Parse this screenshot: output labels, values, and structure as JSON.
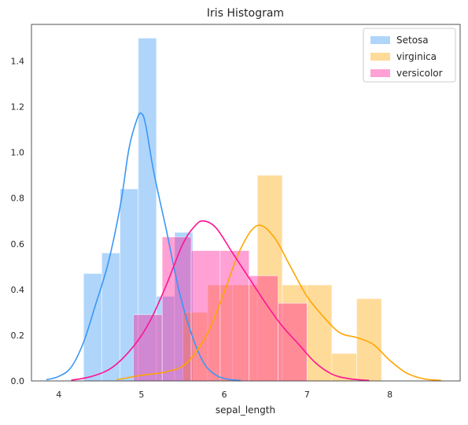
{
  "chart_data": {
    "type": "histogram",
    "title": "Iris Histogram",
    "xlabel": "sepal_length",
    "ylabel": "",
    "xlim": [
      3.67,
      8.85
    ],
    "ylim": [
      0,
      1.56
    ],
    "xticks": [
      4,
      5,
      6,
      7,
      8
    ],
    "yticks": [
      0.0,
      0.2,
      0.4,
      0.6,
      0.8,
      1.0,
      1.2,
      1.4
    ],
    "ytick_labels": [
      "0.0",
      "0.2",
      "0.4",
      "0.6",
      "0.8",
      "1.0",
      "1.2",
      "1.4"
    ],
    "grid": false,
    "legend_position": "top-right",
    "series": [
      {
        "name": "Setosa",
        "color": "#3a97f5",
        "bin_edges": [
          4.3,
          4.52,
          4.74,
          4.96,
          5.18,
          5.4,
          5.62
        ],
        "values": [
          0.47,
          0.56,
          0.84,
          1.5,
          0.37,
          0.65
        ],
        "kde": {
          "x": [
            3.85,
            4.0,
            4.15,
            4.3,
            4.45,
            4.6,
            4.75,
            4.85,
            4.95,
            5.0,
            5.05,
            5.15,
            5.3,
            5.45,
            5.6,
            5.75,
            5.9,
            6.05,
            6.2
          ],
          "y": [
            0.005,
            0.02,
            0.06,
            0.17,
            0.34,
            0.52,
            0.78,
            1.02,
            1.15,
            1.17,
            1.12,
            0.91,
            0.66,
            0.4,
            0.21,
            0.08,
            0.025,
            0.007,
            0.002
          ]
        }
      },
      {
        "name": "virginica",
        "color": "#ffa500",
        "bin_edges": [
          4.9,
          5.2,
          5.5,
          5.8,
          6.1,
          6.4,
          6.7,
          7.0,
          7.3,
          7.6,
          7.9
        ],
        "values": [
          0.0,
          0.0,
          0.3,
          0.42,
          0.42,
          0.9,
          0.42,
          0.42,
          0.12,
          0.36
        ],
        "kde": {
          "x": [
            4.7,
            5.0,
            5.3,
            5.55,
            5.8,
            6.0,
            6.2,
            6.4,
            6.6,
            6.8,
            7.0,
            7.2,
            7.4,
            7.6,
            7.8,
            8.0,
            8.2,
            8.4,
            8.62
          ],
          "y": [
            0.005,
            0.025,
            0.04,
            0.08,
            0.21,
            0.39,
            0.58,
            0.68,
            0.63,
            0.5,
            0.37,
            0.28,
            0.21,
            0.19,
            0.16,
            0.09,
            0.035,
            0.01,
            0.002
          ]
        }
      },
      {
        "name": "versicolor",
        "color": "#ff1493",
        "bin_edges": [
          4.9,
          5.25,
          5.6,
          5.95,
          6.3,
          6.65,
          7.0
        ],
        "values": [
          0.29,
          0.63,
          0.57,
          0.57,
          0.46,
          0.34
        ],
        "kde": {
          "x": [
            4.15,
            4.4,
            4.65,
            4.9,
            5.1,
            5.3,
            5.5,
            5.65,
            5.75,
            5.9,
            6.1,
            6.3,
            6.5,
            6.7,
            6.9,
            7.1,
            7.3,
            7.5,
            7.75
          ],
          "y": [
            0.003,
            0.02,
            0.06,
            0.15,
            0.26,
            0.42,
            0.6,
            0.68,
            0.7,
            0.67,
            0.56,
            0.45,
            0.34,
            0.24,
            0.16,
            0.08,
            0.03,
            0.01,
            0.002
          ]
        }
      }
    ]
  }
}
